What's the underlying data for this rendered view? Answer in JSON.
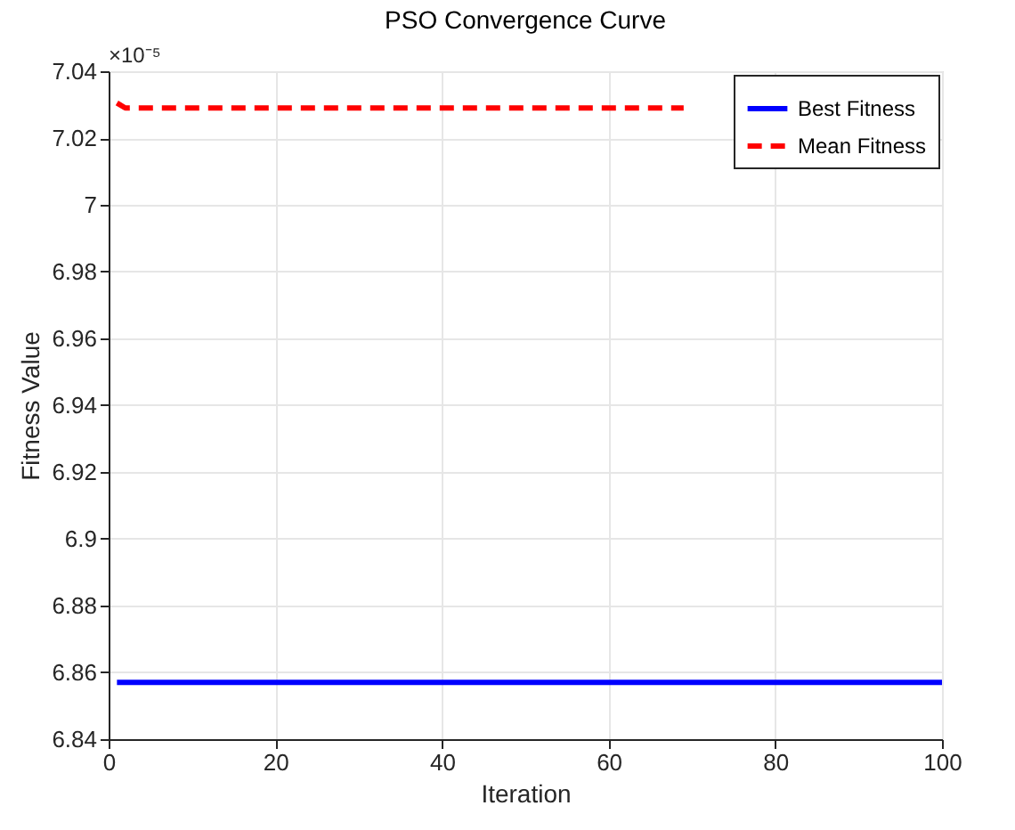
{
  "chart_data": {
    "type": "line",
    "title": "PSO Convergence Curve",
    "xlabel": "Iteration",
    "ylabel": "Fitness Value",
    "annotations": [
      "×10⁻⁵"
    ],
    "series": [
      {
        "name": "Best Fitness",
        "color": "#0000ff",
        "line_style": "solid",
        "x": [
          1,
          100
        ],
        "values": [
          6.857,
          6.857
        ]
      },
      {
        "name": "Mean Fitness",
        "color": "#ff0000",
        "line_style": "dashed",
        "x": [
          1,
          2,
          69
        ],
        "values": [
          7.0305,
          7.029,
          7.029
        ]
      }
    ],
    "xlim": [
      0,
      100
    ],
    "xticks": [
      0,
      20,
      40,
      60,
      80,
      100
    ],
    "ylim": [
      6.84,
      7.04
    ],
    "yticks": [
      6.84,
      6.86,
      6.88,
      6.9,
      6.92,
      6.94,
      6.96,
      6.98,
      7,
      7.02,
      7.04
    ],
    "grid": true,
    "legend": "top right",
    "marker": "none"
  }
}
